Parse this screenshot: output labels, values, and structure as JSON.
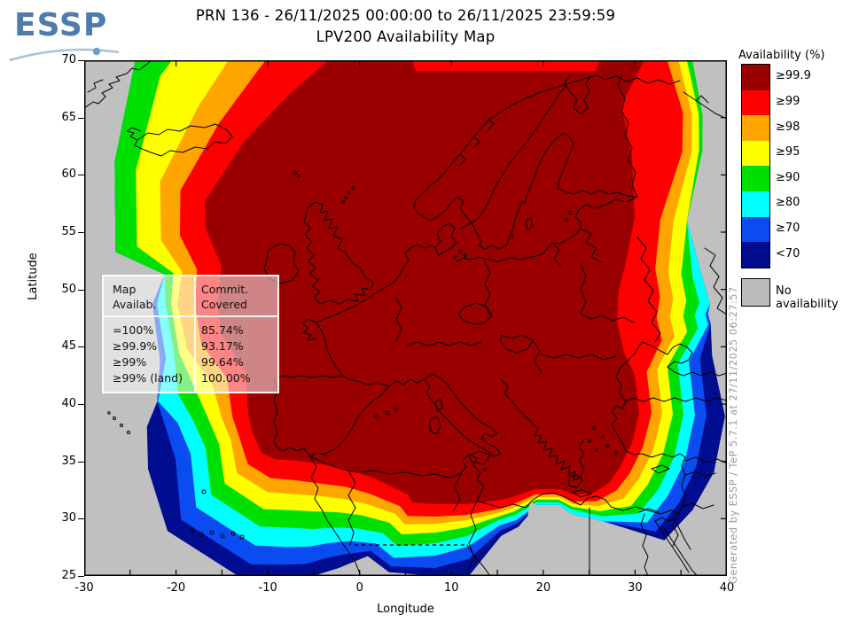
{
  "logo": {
    "text": "ESSP",
    "text_color": "#4d7cad",
    "arc_color": "#a6c3dc",
    "dot_color": "#6f9fc8"
  },
  "title": {
    "line1": "PRN 136 - 26/11/2025 00:00:00 to 26/11/2025 23:59:59",
    "line2": "LPV200 Availability Map"
  },
  "axes": {
    "x_label": "Longitude",
    "y_label": "Latitude",
    "x_ticks": [
      -30,
      -20,
      -10,
      0,
      10,
      20,
      30,
      40
    ],
    "y_ticks": [
      25,
      30,
      35,
      40,
      45,
      50,
      55,
      60,
      65,
      70
    ],
    "x_range": [
      -30,
      40
    ],
    "y_range": [
      25,
      70
    ]
  },
  "legend": {
    "title": "Availability (%)",
    "entries": [
      {
        "label": "≥99.9",
        "color": "#9b0000"
      },
      {
        "label": "≥99",
        "color": "#fd0000"
      },
      {
        "label": "≥98",
        "color": "#ffa500"
      },
      {
        "label": "≥95",
        "color": "#ffff00"
      },
      {
        "label": "≥90",
        "color": "#00e000"
      },
      {
        "label": "≥80",
        "color": "#00ffff"
      },
      {
        "label": "≥70",
        "color": "#0a4cf0"
      },
      {
        "label": "<70",
        "color": "#000d91"
      }
    ],
    "no_availability": {
      "label": "No availability",
      "color": "#bcbcbc"
    }
  },
  "map_colors": {
    "no_data": "#c0c0c0",
    "coastline": "#000000"
  },
  "stats_box": {
    "col1_header": [
      "Map",
      "Availab."
    ],
    "col2_header": [
      "Commit.",
      "Covered"
    ],
    "rows": [
      {
        "label": "=100%",
        "value": "85.74%"
      },
      {
        "label": "≥99.9%",
        "value": "93.17%"
      },
      {
        "label": "≥99%",
        "value": "99.64%"
      },
      {
        "label": "≥99% (land)",
        "value": "100.00%"
      }
    ]
  },
  "watermark": "Generated by ESSP / TeP 5.7.1 at 27/11/2025 06:27:57"
}
